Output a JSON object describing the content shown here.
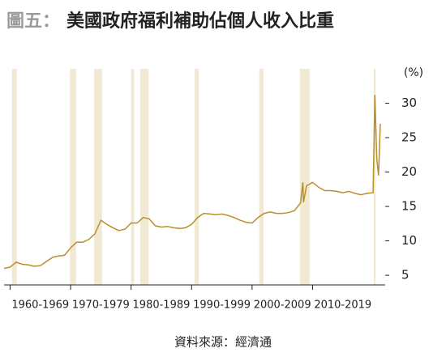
{
  "chart_data": {
    "type": "line",
    "figure_label": "圖五：",
    "title": "美國政府福利補助佔個人收入比重",
    "y_unit": "(%)",
    "source": "資料來源：經濟通",
    "x": [
      1959,
      1960,
      1961,
      1962,
      1963,
      1964,
      1965,
      1966,
      1967,
      1968,
      1969,
      1970,
      1971,
      1972,
      1973,
      1974,
      1975,
      1976,
      1977,
      1978,
      1979,
      1980,
      1981,
      1982,
      1983,
      1984,
      1985,
      1986,
      1987,
      1988,
      1989,
      1990,
      1991,
      1992,
      1993,
      1994,
      1995,
      1996,
      1997,
      1998,
      1999,
      2000,
      2001,
      2002,
      2003,
      2004,
      2005,
      2006,
      2007,
      2008,
      2008.4,
      2008.5,
      2009,
      2010,
      2011,
      2012,
      2013,
      2014,
      2015,
      2016,
      2017,
      2018,
      2019,
      2020,
      2020.3,
      2020.6,
      2020.9,
      2021.2
    ],
    "series": [
      {
        "color": "#b8902a",
        "values": [
          6.0,
          6.2,
          6.9,
          6.6,
          6.5,
          6.3,
          6.4,
          7.0,
          7.6,
          7.8,
          7.9,
          9.0,
          9.8,
          9.8,
          10.2,
          11.0,
          13.0,
          12.4,
          11.9,
          11.5,
          11.7,
          12.6,
          12.6,
          13.4,
          13.2,
          12.2,
          12.0,
          12.1,
          11.9,
          11.8,
          11.9,
          12.4,
          13.4,
          14.0,
          13.9,
          13.8,
          13.9,
          13.7,
          13.4,
          13.0,
          12.7,
          12.6,
          13.4,
          14.0,
          14.2,
          14.0,
          14.0,
          14.1,
          14.4,
          15.5,
          18.5,
          15.6,
          18.0,
          18.5,
          17.8,
          17.3,
          17.3,
          17.2,
          17.0,
          17.2,
          16.9,
          16.7,
          16.9,
          17.0,
          31.2,
          22.0,
          19.5,
          27.0
        ]
      }
    ],
    "recessions": [
      [
        1960.3,
        1961.1
      ],
      [
        1969.9,
        1970.9
      ],
      [
        1973.9,
        1975.2
      ],
      [
        1980.0,
        1980.5
      ],
      [
        1981.5,
        1982.9
      ],
      [
        1990.5,
        1991.2
      ],
      [
        2001.2,
        2001.9
      ],
      [
        2007.9,
        2009.5
      ],
      [
        2020.1,
        2020.4
      ]
    ],
    "recession_color": "#f1e9d4",
    "xlim": [
      1959,
      2022
    ],
    "xticks": [
      {
        "value": 1965,
        "label": "1960-1969"
      },
      {
        "value": 1975,
        "label": "1970-1979"
      },
      {
        "value": 1985,
        "label": "1980-1989"
      },
      {
        "value": 1995,
        "label": "1990-1999"
      },
      {
        "value": 2005,
        "label": "2000-2009"
      },
      {
        "value": 2015,
        "label": "2010-2019"
      }
    ],
    "ylim": [
      3.6,
      35
    ],
    "yticks": [
      5,
      10,
      15,
      20,
      25,
      30
    ]
  }
}
